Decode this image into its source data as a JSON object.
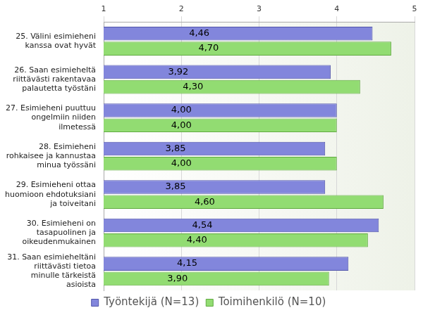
{
  "chart_data": {
    "type": "bar",
    "orientation": "horizontal",
    "categories": [
      "25. Välini esimieheni kanssa ovat hyvät",
      "26. Saan esimieheltä riittävästi rakentavaa palautetta työstäni",
      "27. Esimieheni puuttuu ongelmiin niiden ilmetessä",
      "28. Esimieheni rohkaisee ja kannustaa minua työssäni",
      "29. Esimieheni ottaa huomioon ehdotuksiani ja toiveitani",
      "30. Esimieheni on tasapuolinen ja oikeudenmukainen",
      "31. Saan esimieheltäni riittävästi tietoa minulle tärkeistä asioista"
    ],
    "series": [
      {
        "name": "Työntekijä (N=13)",
        "color": "#8286dc",
        "values": [
          4.46,
          3.92,
          4.0,
          3.85,
          3.85,
          4.54,
          4.15
        ],
        "value_labels": [
          "4,46",
          "3,92",
          "4,00",
          "3,85",
          "3,85",
          "4,54",
          "4,15"
        ]
      },
      {
        "name": "Toimihenkilö (N=10)",
        "color": "#92dc72",
        "values": [
          4.7,
          4.3,
          4.0,
          4.0,
          4.6,
          4.4,
          3.9
        ],
        "value_labels": [
          "4,70",
          "4,30",
          "4,00",
          "4,00",
          "4,60",
          "4,40",
          "3,90"
        ]
      }
    ],
    "xlim": [
      1,
      5
    ],
    "xticks": [
      1,
      2,
      3,
      4,
      5
    ],
    "grid": true,
    "legend": "bottom",
    "data_labels": true
  }
}
